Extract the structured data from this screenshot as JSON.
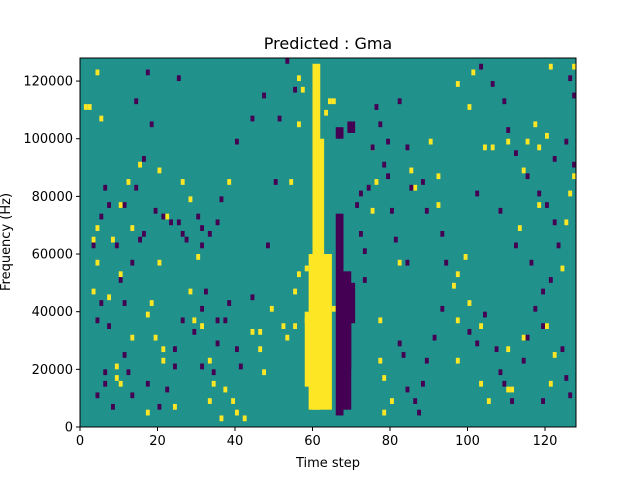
{
  "chart_data": {
    "type": "heatmap",
    "title": "Predicted : Gma",
    "xlabel": "Time step",
    "ylabel": "Frequency (Hz)",
    "xlim": [
      0,
      128
    ],
    "ylim": [
      0,
      128000
    ],
    "x_ticks": [
      0,
      20,
      40,
      60,
      80,
      100,
      120
    ],
    "y_ticks": [
      0,
      20000,
      40000,
      60000,
      80000,
      100000,
      120000
    ],
    "x_tick_labels": [
      "0",
      "20",
      "40",
      "60",
      "80",
      "100",
      "120"
    ],
    "y_tick_labels": [
      "0",
      "20000",
      "40000",
      "60000",
      "80000",
      "100000",
      "120000"
    ],
    "colormap": "viridis",
    "levels": {
      "low": 0,
      "mid": 0.5,
      "high": 1
    },
    "colors": {
      "low": "#440154",
      "mid": "#21918c",
      "high": "#fde725"
    },
    "background_level": "mid",
    "time_step_bins": 128,
    "frequency_bins": 64,
    "bin_height_hz": 2000,
    "high_band": [
      {
        "t": [
          60,
          62
        ],
        "f": [
          6000,
          126000
        ]
      },
      {
        "t": [
          59,
          65
        ],
        "f": [
          6000,
          60000
        ]
      },
      {
        "t": [
          60,
          63
        ],
        "f": [
          60000,
          100000
        ]
      },
      {
        "t": [
          58,
          63
        ],
        "f": [
          14000,
          40000
        ]
      }
    ],
    "low_band": [
      {
        "t": [
          66,
          68
        ],
        "f": [
          4000,
          74000
        ]
      },
      {
        "t": [
          67,
          70
        ],
        "f": [
          20000,
          54000
        ]
      },
      {
        "t": [
          68,
          70
        ],
        "f": [
          6000,
          46000
        ]
      },
      {
        "t": [
          69,
          71
        ],
        "f": [
          36000,
          50000
        ]
      },
      {
        "t": [
          69,
          71
        ],
        "f": [
          102000,
          106000
        ]
      },
      {
        "t": [
          66,
          68
        ],
        "f": [
          100000,
          104000
        ]
      }
    ],
    "sparse_cells": {
      "high": [
        [
          4,
          122000
        ],
        [
          1,
          110000
        ],
        [
          2,
          110000
        ],
        [
          5,
          106000
        ],
        [
          10,
          76000
        ],
        [
          12,
          84000
        ],
        [
          15,
          90000
        ],
        [
          13,
          68000
        ],
        [
          4,
          68000
        ],
        [
          3,
          64000
        ],
        [
          8,
          64000
        ],
        [
          4,
          56000
        ],
        [
          10,
          52000
        ],
        [
          3,
          46000
        ],
        [
          7,
          44000
        ],
        [
          20,
          88000
        ],
        [
          22,
          72000
        ],
        [
          20,
          56000
        ],
        [
          18,
          42000
        ],
        [
          17,
          38000
        ],
        [
          19,
          30000
        ],
        [
          21,
          22000
        ],
        [
          13,
          30000
        ],
        [
          9,
          20000
        ],
        [
          9,
          16000
        ],
        [
          10,
          14000
        ],
        [
          17,
          4000
        ],
        [
          21,
          26000
        ],
        [
          24,
          6000
        ],
        [
          26,
          84000
        ],
        [
          28,
          78000
        ],
        [
          30,
          58000
        ],
        [
          28,
          46000
        ],
        [
          29,
          36000
        ],
        [
          31,
          34000
        ],
        [
          33,
          22000
        ],
        [
          34,
          14000
        ],
        [
          33,
          8000
        ],
        [
          36,
          2000
        ],
        [
          37,
          12000
        ],
        [
          38,
          84000
        ],
        [
          39,
          8000
        ],
        [
          40,
          4000
        ],
        [
          42,
          2000
        ],
        [
          47,
          18000
        ],
        [
          46,
          32000
        ],
        [
          46,
          26000
        ],
        [
          44,
          32000
        ],
        [
          49,
          40000
        ],
        [
          52,
          34000
        ],
        [
          53,
          30000
        ],
        [
          55,
          34000
        ],
        [
          55,
          46000
        ],
        [
          58,
          54000
        ],
        [
          56,
          52000
        ],
        [
          58,
          36000
        ],
        [
          54,
          84000
        ],
        [
          56,
          104000
        ],
        [
          57,
          116000
        ],
        [
          60,
          120000
        ],
        [
          56,
          120000
        ],
        [
          63,
          108000
        ],
        [
          64,
          112000
        ],
        [
          65,
          112000
        ],
        [
          65,
          40000
        ],
        [
          75,
          96000
        ],
        [
          77,
          36000
        ],
        [
          77,
          22000
        ],
        [
          78,
          16000
        ],
        [
          78,
          4000
        ],
        [
          75,
          74000
        ],
        [
          76,
          84000
        ],
        [
          80,
          8000
        ],
        [
          82,
          56000
        ],
        [
          85,
          88000
        ],
        [
          86,
          82000
        ],
        [
          90,
          98000
        ],
        [
          92,
          86000
        ],
        [
          92,
          76000
        ],
        [
          97,
          36000
        ],
        [
          97,
          22000
        ],
        [
          96,
          48000
        ],
        [
          97,
          52000
        ],
        [
          99,
          58000
        ],
        [
          100,
          42000
        ],
        [
          103,
          34000
        ],
        [
          103,
          14000
        ],
        [
          105,
          8000
        ],
        [
          110,
          26000
        ],
        [
          113,
          68000
        ],
        [
          114,
          88000
        ],
        [
          118,
          96000
        ],
        [
          118,
          76000
        ],
        [
          120,
          34000
        ],
        [
          121,
          14000
        ],
        [
          124,
          54000
        ],
        [
          125,
          70000
        ],
        [
          126,
          80000
        ],
        [
          127,
          124000
        ],
        [
          97,
          118000
        ],
        [
          101,
          122000
        ],
        [
          110,
          12000
        ],
        [
          111,
          12000
        ],
        [
          114,
          30000
        ],
        [
          122,
          24000
        ],
        [
          127,
          86000
        ],
        [
          100,
          110000
        ],
        [
          104,
          96000
        ],
        [
          106,
          96000
        ],
        [
          110,
          98000
        ],
        [
          115,
          98000
        ],
        [
          117,
          104000
        ],
        [
          120,
          100000
        ],
        [
          121,
          124000
        ]
      ],
      "low": [
        [
          5,
          72000
        ],
        [
          6,
          82000
        ],
        [
          7,
          76000
        ],
        [
          3,
          62000
        ],
        [
          4,
          36000
        ],
        [
          7,
          34000
        ],
        [
          9,
          62000
        ],
        [
          5,
          42000
        ],
        [
          6,
          18000
        ],
        [
          6,
          14000
        ],
        [
          4,
          10000
        ],
        [
          8,
          6000
        ],
        [
          10,
          50000
        ],
        [
          11,
          42000
        ],
        [
          11,
          76000
        ],
        [
          13,
          56000
        ],
        [
          15,
          64000
        ],
        [
          16,
          66000
        ],
        [
          16,
          92000
        ],
        [
          14,
          82000
        ],
        [
          19,
          74000
        ],
        [
          21,
          72000
        ],
        [
          23,
          70000
        ],
        [
          25,
          70000
        ],
        [
          26,
          66000
        ],
        [
          27,
          64000
        ],
        [
          30,
          72000
        ],
        [
          31,
          68000
        ],
        [
          31,
          62000
        ],
        [
          33,
          66000
        ],
        [
          35,
          36000
        ],
        [
          35,
          28000
        ],
        [
          34,
          18000
        ],
        [
          37,
          36000
        ],
        [
          38,
          42000
        ],
        [
          40,
          26000
        ],
        [
          41,
          20000
        ],
        [
          44,
          44000
        ],
        [
          48,
          62000
        ],
        [
          50,
          84000
        ],
        [
          51,
          106000
        ],
        [
          53,
          126000
        ],
        [
          55,
          116000
        ],
        [
          47,
          114000
        ],
        [
          44,
          106000
        ],
        [
          40,
          98000
        ],
        [
          36,
          78000
        ],
        [
          35,
          70000
        ],
        [
          32,
          46000
        ],
        [
          31,
          40000
        ],
        [
          31,
          20000
        ],
        [
          29,
          32000
        ],
        [
          26,
          36000
        ],
        [
          20,
          6000
        ],
        [
          22,
          12000
        ],
        [
          24,
          20000
        ],
        [
          24,
          26000
        ],
        [
          17,
          14000
        ],
        [
          13,
          10000
        ],
        [
          12,
          18000
        ],
        [
          11,
          24000
        ],
        [
          17,
          122000
        ],
        [
          25,
          120000
        ],
        [
          18,
          104000
        ],
        [
          14,
          112000
        ],
        [
          71,
          76000
        ],
        [
          72,
          80000
        ],
        [
          72,
          66000
        ],
        [
          73,
          60000
        ],
        [
          73,
          50000
        ],
        [
          74,
          82000
        ],
        [
          75,
          96000
        ],
        [
          76,
          110000
        ],
        [
          77,
          104000
        ],
        [
          79,
          98000
        ],
        [
          82,
          112000
        ],
        [
          84,
          96000
        ],
        [
          85,
          82000
        ],
        [
          88,
          84000
        ],
        [
          89,
          74000
        ],
        [
          93,
          66000
        ],
        [
          94,
          56000
        ],
        [
          93,
          40000
        ],
        [
          91,
          30000
        ],
        [
          89,
          22000
        ],
        [
          88,
          14000
        ],
        [
          87,
          4000
        ],
        [
          86,
          8000
        ],
        [
          83,
          24000
        ],
        [
          82,
          28000
        ],
        [
          84,
          12000
        ],
        [
          84,
          56000
        ],
        [
          81,
          64000
        ],
        [
          80,
          74000
        ],
        [
          79,
          86000
        ],
        [
          78,
          90000
        ],
        [
          100,
          32000
        ],
        [
          102,
          28000
        ],
        [
          104,
          38000
        ],
        [
          107,
          26000
        ],
        [
          108,
          18000
        ],
        [
          109,
          14000
        ],
        [
          111,
          8000
        ],
        [
          114,
          22000
        ],
        [
          115,
          30000
        ],
        [
          117,
          40000
        ],
        [
          119,
          46000
        ],
        [
          121,
          50000
        ],
        [
          123,
          62000
        ],
        [
          122,
          70000
        ],
        [
          120,
          76000
        ],
        [
          118,
          80000
        ],
        [
          115,
          86000
        ],
        [
          112,
          94000
        ],
        [
          110,
          102000
        ],
        [
          109,
          112000
        ],
        [
          106,
          118000
        ],
        [
          103,
          124000
        ],
        [
          108,
          74000
        ],
        [
          112,
          62000
        ],
        [
          116,
          56000
        ],
        [
          119,
          34000
        ],
        [
          124,
          26000
        ],
        [
          125,
          16000
        ],
        [
          126,
          10000
        ],
        [
          127,
          90000
        ],
        [
          127,
          114000
        ],
        [
          126,
          120000
        ],
        [
          119,
          8000
        ],
        [
          122,
          92000
        ],
        [
          125,
          98000
        ],
        [
          102,
          80000
        ]
      ]
    }
  }
}
